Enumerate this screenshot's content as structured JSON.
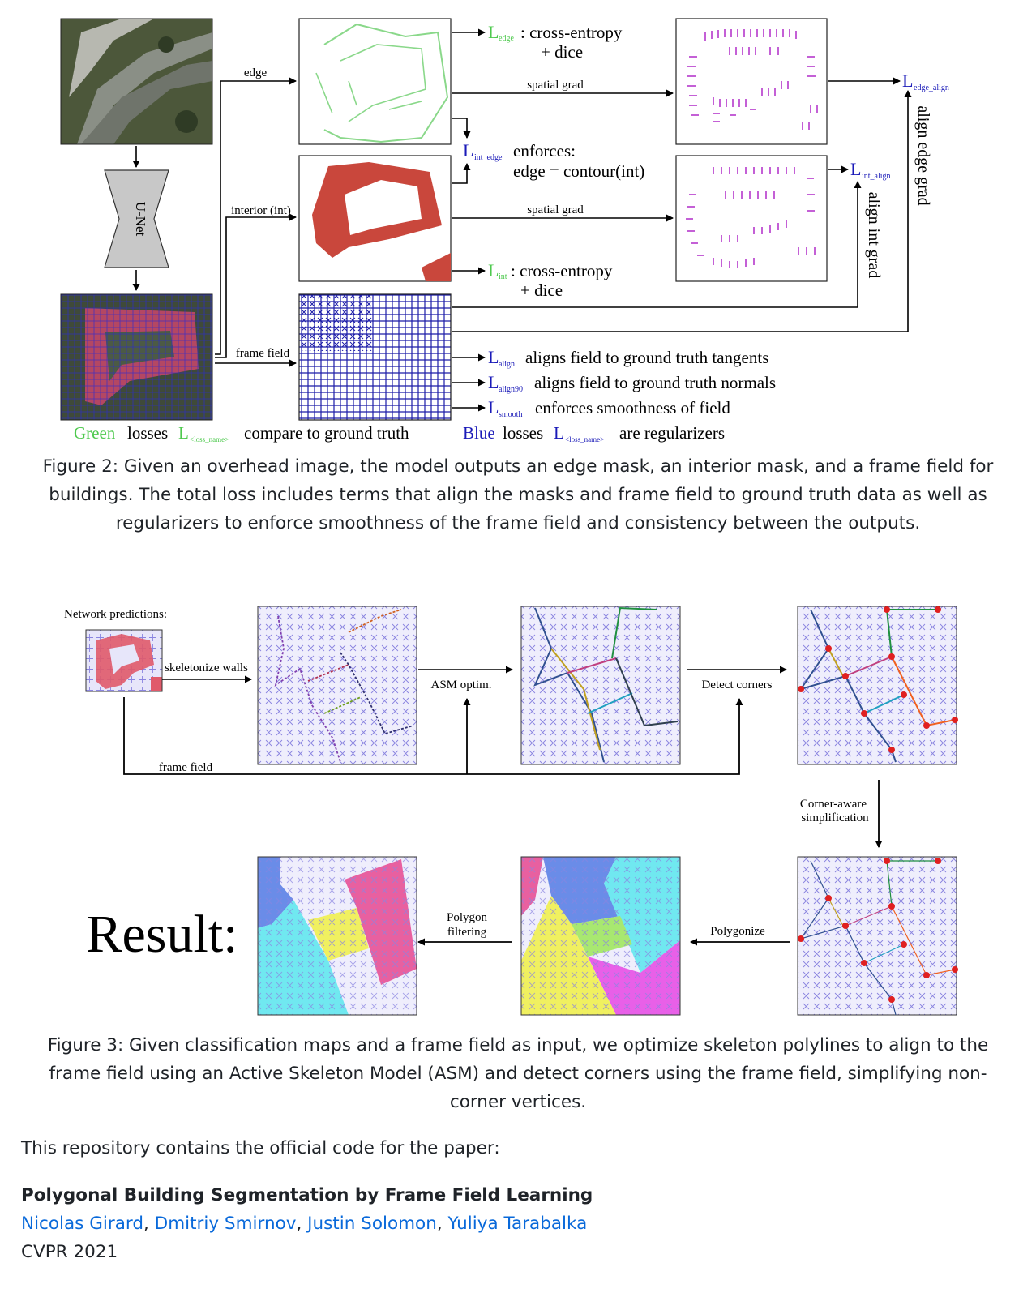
{
  "figure2": {
    "labels": {
      "edge": "edge",
      "interior": "interior (int)",
      "frame_field": "frame field",
      "spatial_grad": "spatial grad",
      "unet": "U-Net",
      "l_edge_desc1": ": cross-entropy",
      "l_edge_desc2": "+ dice",
      "l_int_edge_desc1": "enforces:",
      "l_int_edge_desc2": "edge = contour(int)",
      "l_int_desc1": ": cross-entropy",
      "l_int_desc2": "+ dice",
      "align_edge_grad": "align edge grad",
      "align_int_grad": "align int grad",
      "l_align_desc": "aligns field to ground truth tangents",
      "l_align90_desc": "aligns field to ground truth normals",
      "l_smooth_desc": "enforces smoothness of field",
      "legend_green": "Green",
      "legend_losses": "losses",
      "legend_green_desc": "compare to ground truth",
      "legend_blue": "Blue",
      "legend_blue_desc": "are regularizers",
      "L": "L",
      "sub_edge": "edge",
      "sub_int_edge": "int_edge",
      "sub_int": "int",
      "sub_edge_align": "edge_align",
      "sub_int_align": "int_align",
      "sub_align": "align",
      "sub_align90": "align90",
      "sub_smooth": "smooth",
      "sub_loss_name": "<loss_name>"
    },
    "caption": "Figure 2: Given an overhead image, the model outputs an edge mask, an interior mask, and a frame field for buildings. The total loss includes terms that align the masks and frame field to ground truth data as well as regularizers to enforce smoothness of the frame field and consistency between the outputs."
  },
  "figure3": {
    "labels": {
      "network_predictions": "Network predictions:",
      "skeletonize": "skeletonize walls",
      "asm": "ASM optim.",
      "detect": "Detect corners",
      "frame_field": "frame field",
      "corner_aware1": "Corner-aware",
      "corner_aware2": "simplification",
      "polygonize": "Polygonize",
      "filtering1": "Polygon",
      "filtering2": "filtering",
      "result": "Result:"
    },
    "caption": "Figure 3: Given classification maps and a frame field as input, we optimize skeleton polylines to align to the frame field using an Active Skeleton Model (ASM) and detect corners using the frame field, simplifying non-corner vertices."
  },
  "intro_text": "This repository contains the official code for the paper:",
  "paper_title": "Polygonal Building Segmentation by Frame Field Learning",
  "authors": [
    "Nicolas Girard",
    "Dmitriy Smirnov",
    "Justin Solomon",
    "Yuliya Tarabalka"
  ],
  "venue": "CVPR 2021",
  "colors": {
    "green_loss": "#4ec94e",
    "blue_loss": "#1a1ab8",
    "mask_red": "#c9473c",
    "field_blue": "#1c1ca8",
    "grad_purple": "#b02cc8",
    "link": "#0969da"
  },
  "icons": [
    "arrow-icon",
    "unet-hourglass-icon",
    "corner-dot-icon"
  ]
}
